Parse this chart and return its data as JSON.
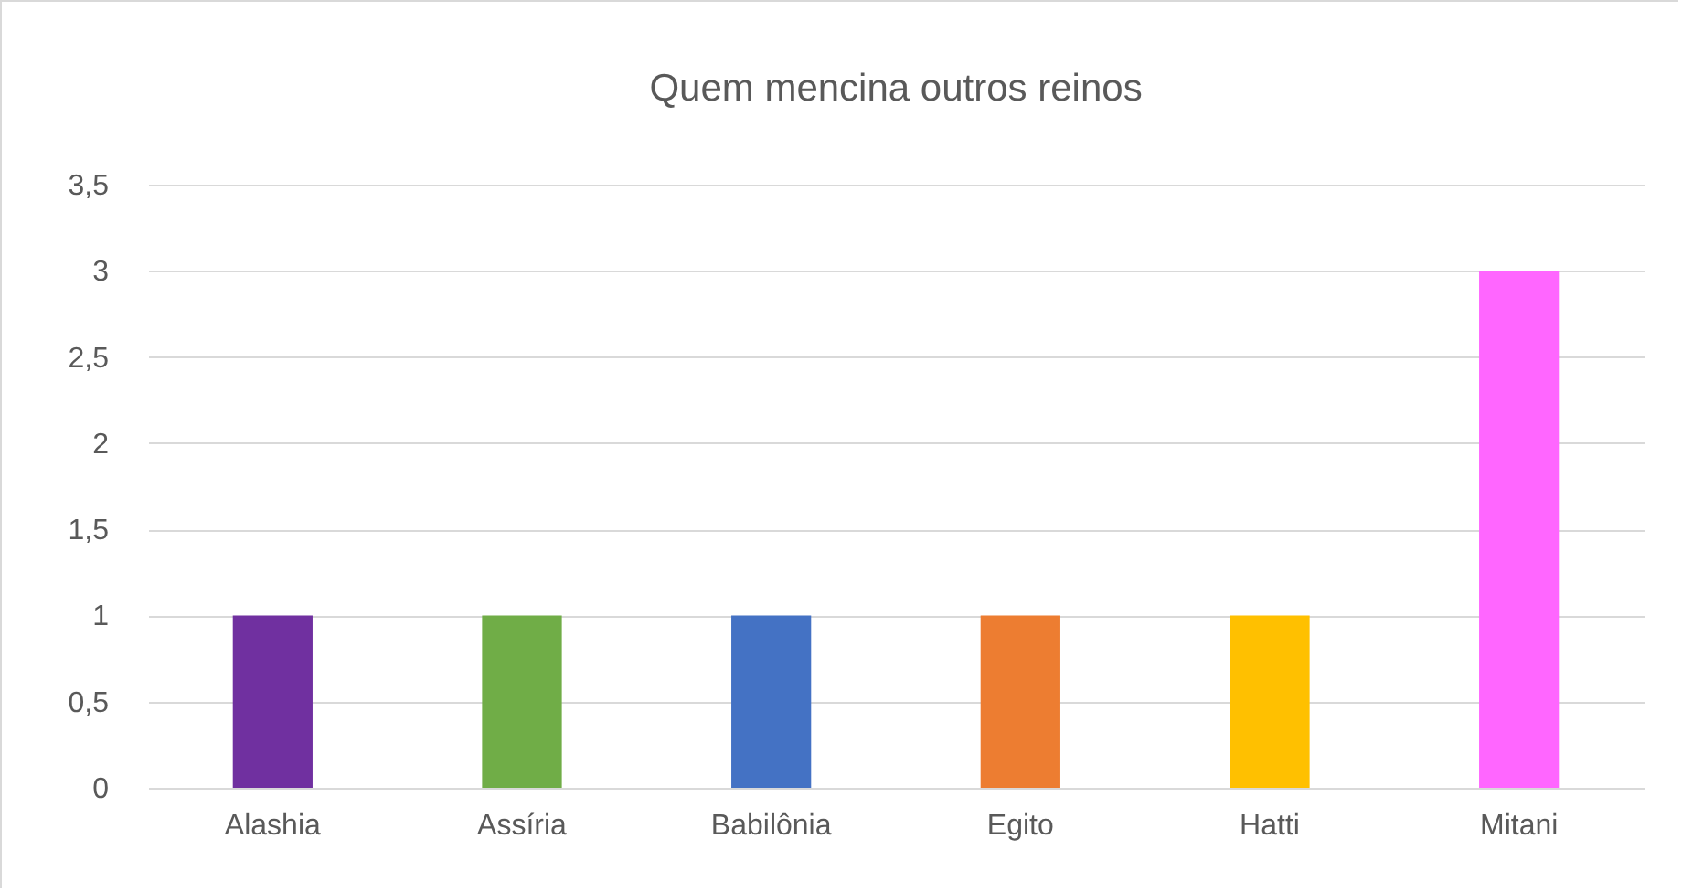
{
  "chart_data": {
    "type": "bar",
    "title": "Quem mencina outros reinos",
    "categories": [
      "Alashia",
      "Assíria",
      "Babilônia",
      "Egito",
      "Hatti",
      "Mitani"
    ],
    "values": [
      1,
      1,
      1,
      1,
      1,
      3
    ],
    "colors": [
      "#7030a0",
      "#70ad47",
      "#4472c4",
      "#ed7d31",
      "#ffc000",
      "#ff66ff"
    ],
    "ylim": [
      0,
      3.5
    ],
    "yticks": [
      0,
      {
        "value": 0.5,
        "label": "0,5"
      },
      1,
      {
        "value": 1.5,
        "label": "1,5"
      },
      2,
      {
        "value": 2.5,
        "label": "2,5"
      },
      3,
      {
        "value": 3.5,
        "label": "3,5"
      }
    ],
    "grid": true,
    "legend": false
  }
}
